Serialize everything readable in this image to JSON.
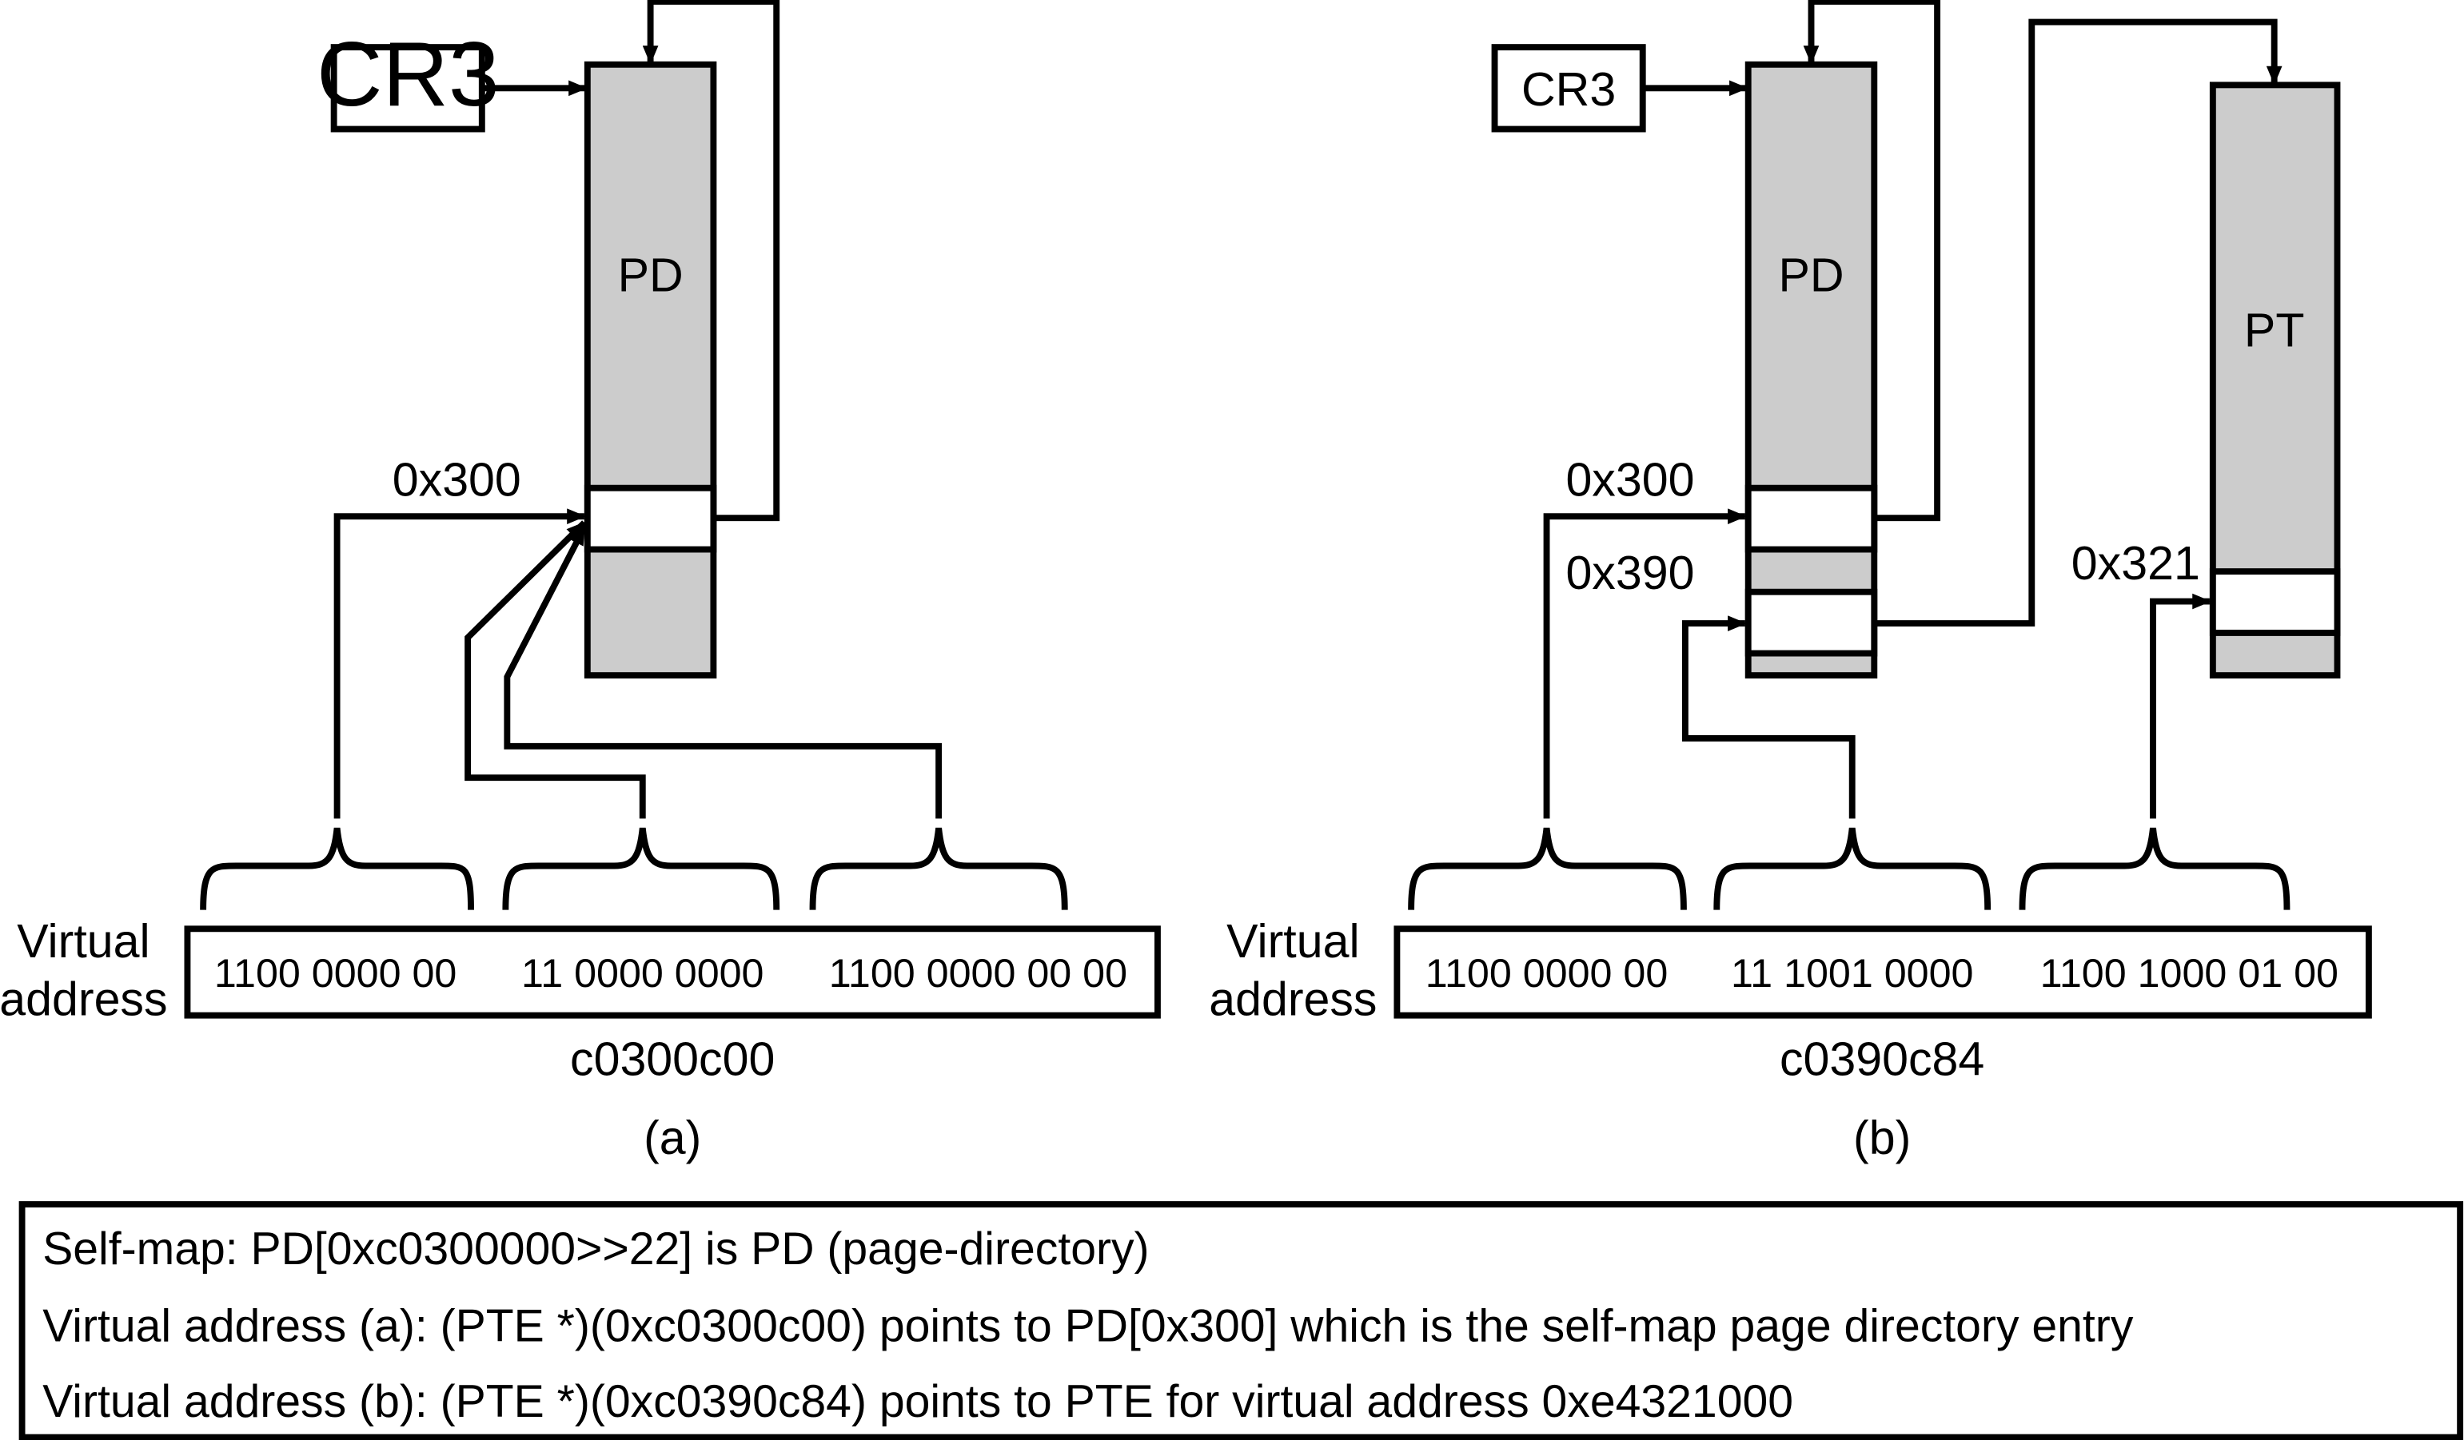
{
  "panel_a": {
    "cr3": "CR3",
    "pd": "PD",
    "index": "0x300",
    "vaddr_label": [
      "Virtual",
      "address"
    ],
    "bits": [
      "1100 0000 00",
      "11 0000 0000",
      "1100 0000 00 00"
    ],
    "hex": "c0300c00",
    "caption": "(a)"
  },
  "panel_b": {
    "cr3": "CR3",
    "pd": "PD",
    "pt": "PT",
    "index_pd_self": "0x300",
    "index_pd_pt": "0x390",
    "index_pt": "0x321",
    "vaddr_label": [
      "Virtual",
      "address"
    ],
    "bits": [
      "1100 0000 00",
      "11 1001 0000",
      "1100 1000 01 00"
    ],
    "hex": "c0390c84",
    "caption": "(b)"
  },
  "notes": [
    "Self-map: PD[0xc0300000>>22] is PD (page-directory)",
    "Virtual address (a): (PTE *)(0xc0300c00) points to PD[0x300] which is the self-map page directory entry",
    "Virtual address (b): (PTE *)(0xc0390c84) points to PTE for virtual address 0xe4321000"
  ]
}
